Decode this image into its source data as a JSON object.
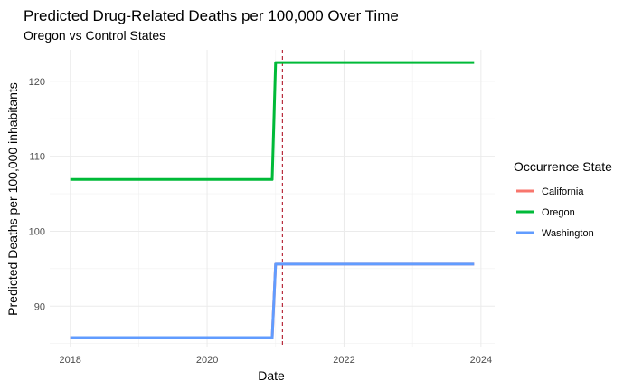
{
  "chart_data": {
    "type": "line",
    "title": "Predicted Drug-Related Deaths per 100,000 Over Time",
    "subtitle": "Oregon vs Control States",
    "xlabel": "Date",
    "ylabel": "Predicted Deaths per 100,000 inhabitants",
    "x_ticks": [
      "2018",
      "2020",
      "2022",
      "2024"
    ],
    "y_ticks": [
      90,
      100,
      110,
      120
    ],
    "xlim": [
      2017.7,
      2024.2
    ],
    "ylim": [
      84.6,
      124.2
    ],
    "grid": true,
    "legend_title": "Occurrence State",
    "legend_position": "right",
    "vline": {
      "x": 2021.1,
      "color": "#B2182B",
      "style": "dashed"
    },
    "series": [
      {
        "name": "California",
        "color": "#F8766D",
        "x": [
          2018.0,
          2020.95,
          2021.0,
          2023.9
        ],
        "y": [
          85.8,
          85.8,
          95.6,
          95.6
        ]
      },
      {
        "name": "Oregon",
        "color": "#00BA38",
        "x": [
          2018.0,
          2020.95,
          2021.0,
          2023.9
        ],
        "y": [
          106.9,
          106.9,
          122.5,
          122.5
        ]
      },
      {
        "name": "Washington",
        "color": "#619CFF",
        "x": [
          2018.0,
          2020.95,
          2021.0,
          2023.9
        ],
        "y": [
          85.8,
          85.8,
          95.6,
          95.6
        ]
      }
    ]
  }
}
